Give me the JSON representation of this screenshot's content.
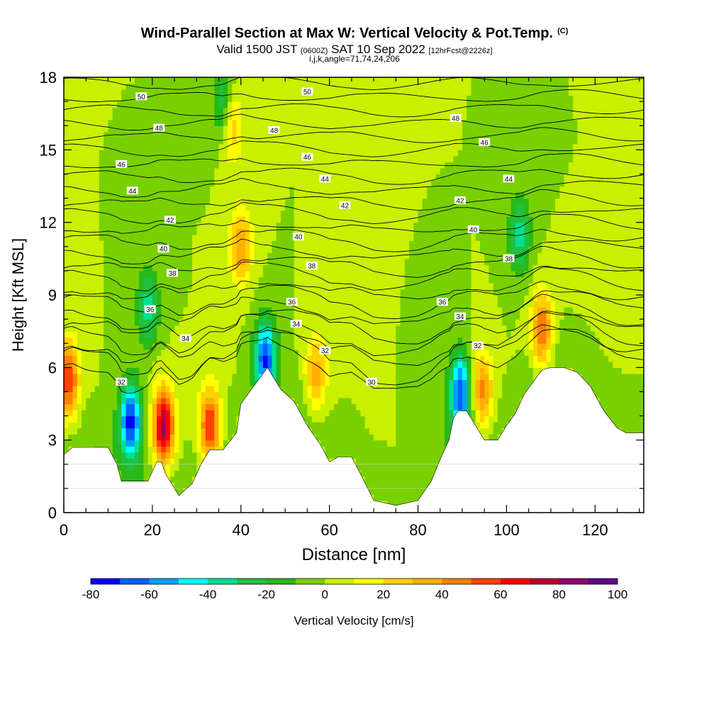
{
  "header": {
    "title": "Wind-Parallel Section at Max W: Vertical Velocity & Pot.Temp.",
    "copyright": "(C)",
    "valid_prefix": "Valid 1500 JST",
    "valid_utc": "(0600Z)",
    "valid_date": "SAT 10 Sep 2022",
    "forecast": "[12hrFcst@2226z]",
    "params": "i,j,k,angle=71,74,24,206"
  },
  "colors": {
    "scale": [
      "#0000ff",
      "#0060ff",
      "#00a0ff",
      "#00ffff",
      "#00e090",
      "#20c040",
      "#28b818",
      "#78d000",
      "#c8f000",
      "#ffff00",
      "#ffd000",
      "#ffb000",
      "#ff8000",
      "#ff4000",
      "#ff0000",
      "#c00030",
      "#900070",
      "#600090"
    ],
    "terrain": "#ffffff",
    "contour": "#000000"
  },
  "chart_data": {
    "type": "heatmap",
    "xlabel": "Distance [nm]",
    "ylabel": "Height [Kft MSL]",
    "xlim": [
      0,
      131
    ],
    "ylim": [
      0,
      18
    ],
    "x_ticks": [
      0,
      20,
      40,
      60,
      80,
      100,
      120
    ],
    "y_ticks": [
      0,
      3,
      6,
      9,
      12,
      15,
      18
    ],
    "colorbar": {
      "label": "Vertical Velocity [cm/s]",
      "levels": [
        -80,
        -70,
        -60,
        -50,
        -40,
        -30,
        -20,
        -10,
        0,
        10,
        20,
        30,
        40,
        50,
        60,
        70,
        80,
        90,
        100
      ],
      "tick_labels": [
        -80,
        -60,
        -40,
        -20,
        0,
        20,
        40,
        60,
        80,
        100
      ]
    },
    "terrain": {
      "x": [
        0,
        2,
        5,
        10,
        12,
        13,
        16,
        19,
        21,
        22,
        23,
        25,
        26,
        29,
        31,
        33,
        36,
        39,
        40,
        44,
        46,
        49,
        52,
        55,
        58,
        60,
        62,
        65,
        67,
        70,
        75,
        80,
        83,
        85,
        87,
        88,
        89,
        91,
        92,
        95,
        98,
        100,
        102,
        104,
        106,
        108,
        110,
        113,
        116,
        119,
        122,
        125,
        127,
        131
      ],
      "height": [
        2.4,
        2.7,
        2.7,
        2.7,
        2.0,
        1.3,
        1.3,
        1.3,
        2.1,
        2.1,
        1.6,
        1.0,
        0.7,
        1.2,
        2.0,
        2.6,
        2.6,
        3.3,
        4.5,
        5.5,
        6.0,
        5.1,
        4.6,
        3.6,
        2.8,
        2.1,
        2.3,
        2.3,
        1.6,
        0.5,
        0.3,
        0.5,
        1.3,
        2.2,
        3.0,
        3.9,
        4.2,
        4.2,
        3.9,
        3.0,
        3.0,
        3.6,
        4.1,
        4.9,
        5.4,
        5.9,
        6.0,
        6.0,
        5.8,
        5.2,
        4.2,
        3.5,
        3.3,
        3.3
      ]
    },
    "vertical_velocity_features": [
      {
        "x": 15,
        "z": 3.8,
        "w": -75
      },
      {
        "x": 22.5,
        "z": 3.5,
        "w": 85
      },
      {
        "x": 33,
        "z": 3.5,
        "w": 65
      },
      {
        "x": 1,
        "z": 5.5,
        "w": 60
      },
      {
        "x": 45.5,
        "z": 6.4,
        "w": -65
      },
      {
        "x": 89.5,
        "z": 5.0,
        "w": -65
      },
      {
        "x": 94.5,
        "z": 5.0,
        "w": 45
      },
      {
        "x": 108,
        "z": 7.5,
        "w": 50
      },
      {
        "x": 40,
        "z": 11.0,
        "w": 40
      },
      {
        "x": 36,
        "z": 17.0,
        "w": -30
      },
      {
        "x": 38,
        "z": 16.0,
        "w": 30
      },
      {
        "x": 57,
        "z": 5.8,
        "w": 35
      },
      {
        "x": 19,
        "z": 8.5,
        "w": -35
      },
      {
        "x": 103,
        "z": 11.5,
        "w": -35
      }
    ],
    "isentrope_labels": [
      {
        "value": "50",
        "x": 17.5,
        "z": 17.2
      },
      {
        "value": "50",
        "x": 55,
        "z": 17.4
      },
      {
        "value": "48",
        "x": 21.5,
        "z": 15.9
      },
      {
        "value": "48",
        "x": 47.5,
        "z": 15.8
      },
      {
        "value": "48",
        "x": 88.5,
        "z": 16.3
      },
      {
        "value": "46",
        "x": 13,
        "z": 14.4
      },
      {
        "value": "46",
        "x": 55,
        "z": 14.7
      },
      {
        "value": "46",
        "x": 95,
        "z": 15.3
      },
      {
        "value": "44",
        "x": 15.5,
        "z": 13.3
      },
      {
        "value": "44",
        "x": 59,
        "z": 13.8
      },
      {
        "value": "44",
        "x": 100.5,
        "z": 13.8
      },
      {
        "value": "42",
        "x": 24,
        "z": 12.1
      },
      {
        "value": "42",
        "x": 63.5,
        "z": 12.7
      },
      {
        "value": "42",
        "x": 89.5,
        "z": 12.9
      },
      {
        "value": "40",
        "x": 22.5,
        "z": 10.9
      },
      {
        "value": "40",
        "x": 53,
        "z": 11.4
      },
      {
        "value": "40",
        "x": 92.5,
        "z": 11.7
      },
      {
        "value": "38",
        "x": 24.5,
        "z": 9.9
      },
      {
        "value": "38",
        "x": 56,
        "z": 10.2
      },
      {
        "value": "38",
        "x": 100.5,
        "z": 10.5
      },
      {
        "value": "36",
        "x": 19.5,
        "z": 8.4
      },
      {
        "value": "36",
        "x": 51.5,
        "z": 8.7
      },
      {
        "value": "36",
        "x": 85.5,
        "z": 8.7
      },
      {
        "value": "34",
        "x": 27.5,
        "z": 7.2
      },
      {
        "value": "34",
        "x": 52.5,
        "z": 7.8
      },
      {
        "value": "34",
        "x": 89.5,
        "z": 8.1
      },
      {
        "value": "32",
        "x": 13,
        "z": 5.4
      },
      {
        "value": "32",
        "x": 59,
        "z": 6.7
      },
      {
        "value": "32",
        "x": 93.5,
        "z": 6.9
      },
      {
        "value": "30",
        "x": 69.5,
        "z": 5.4
      }
    ]
  }
}
